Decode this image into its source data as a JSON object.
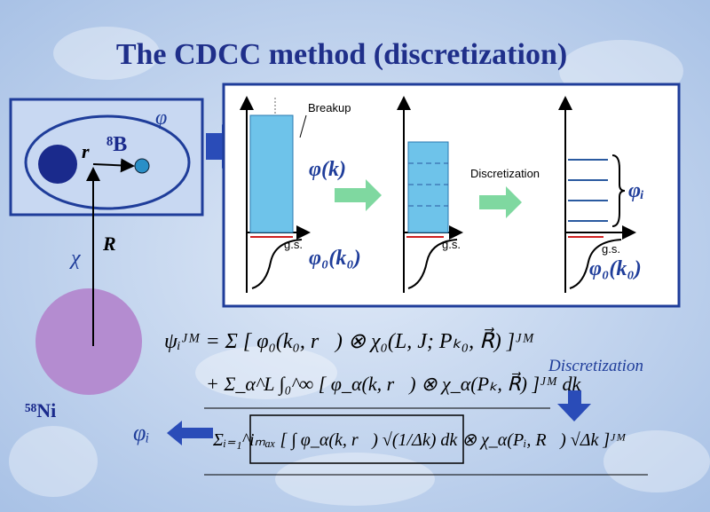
{
  "title": "The CDCC method (discretization)",
  "left_diagram": {
    "phi": "φ",
    "r": "r",
    "projectile": "⁸B",
    "R": "R",
    "chi": "χ",
    "target": "⁵⁸Ni"
  },
  "panels": {
    "breakup": "Breakup",
    "phi_k": "φ(k)",
    "gs_1": "g.s.",
    "phi0_1": "φ₀(k₀)",
    "gs_2": "g.s.",
    "discretization": "Discretization",
    "phi_i": "φᵢ",
    "gs_3": "g.s.",
    "phi0_3": "φ₀(k₀)"
  },
  "equations": {
    "line1": "ψᵢᴶᴹ = Σ [ φ₀(k₀, r⃗) ⊗ χ₀(L, J; Pₖ₀, R⃗) ]ᴶᴹ",
    "line2": "+ Σ_α^L ∫₀^∞ [ φ_α(k, r⃗) ⊗ χ_α(Pₖ, R⃗) ]ᴶᴹ dk",
    "line3": "Σᵢ₌₁^iₘₐₓ [ ∫ φ_α(k, r⃗) √(1/Δk) dk ⊗ χ_α(Pᵢ, R⃗) √Δk ]ᴶᴹ",
    "discretization_label": "Discretization",
    "phi_i_out": "φᵢ"
  }
}
